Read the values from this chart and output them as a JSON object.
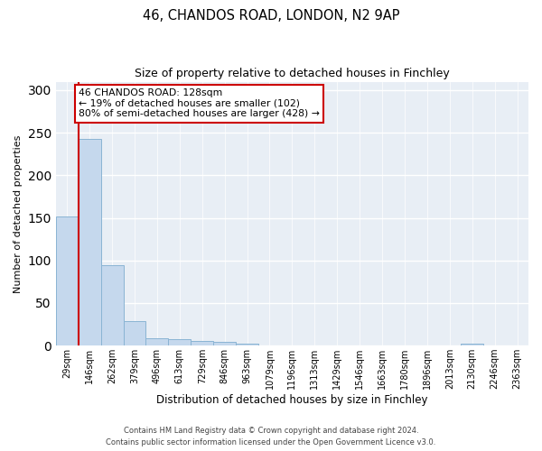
{
  "title1": "46, CHANDOS ROAD, LONDON, N2 9AP",
  "title2": "Size of property relative to detached houses in Finchley",
  "xlabel": "Distribution of detached houses by size in Finchley",
  "ylabel": "Number of detached properties",
  "categories": [
    "29sqm",
    "146sqm",
    "262sqm",
    "379sqm",
    "496sqm",
    "613sqm",
    "729sqm",
    "846sqm",
    "963sqm",
    "1079sqm",
    "1196sqm",
    "1313sqm",
    "1429sqm",
    "1546sqm",
    "1663sqm",
    "1780sqm",
    "1896sqm",
    "2013sqm",
    "2130sqm",
    "2246sqm",
    "2363sqm"
  ],
  "values": [
    152,
    243,
    94,
    29,
    9,
    8,
    6,
    4,
    2,
    0,
    0,
    0,
    0,
    0,
    0,
    0,
    0,
    0,
    2,
    0,
    0
  ],
  "bar_color": "#c5d8ed",
  "bar_edge_color": "#8ab4d4",
  "annotation_text": "46 CHANDOS ROAD: 128sqm\n← 19% of detached houses are smaller (102)\n80% of semi-detached houses are larger (428) →",
  "vline_color": "#cc0000",
  "annotation_box_edge": "#cc0000",
  "plot_bg_color": "#e8eef5",
  "footer1": "Contains HM Land Registry data © Crown copyright and database right 2024.",
  "footer2": "Contains public sector information licensed under the Open Government Licence v3.0.",
  "ylim": [
    0,
    310
  ],
  "yticks": [
    0,
    50,
    100,
    150,
    200,
    250,
    300
  ]
}
